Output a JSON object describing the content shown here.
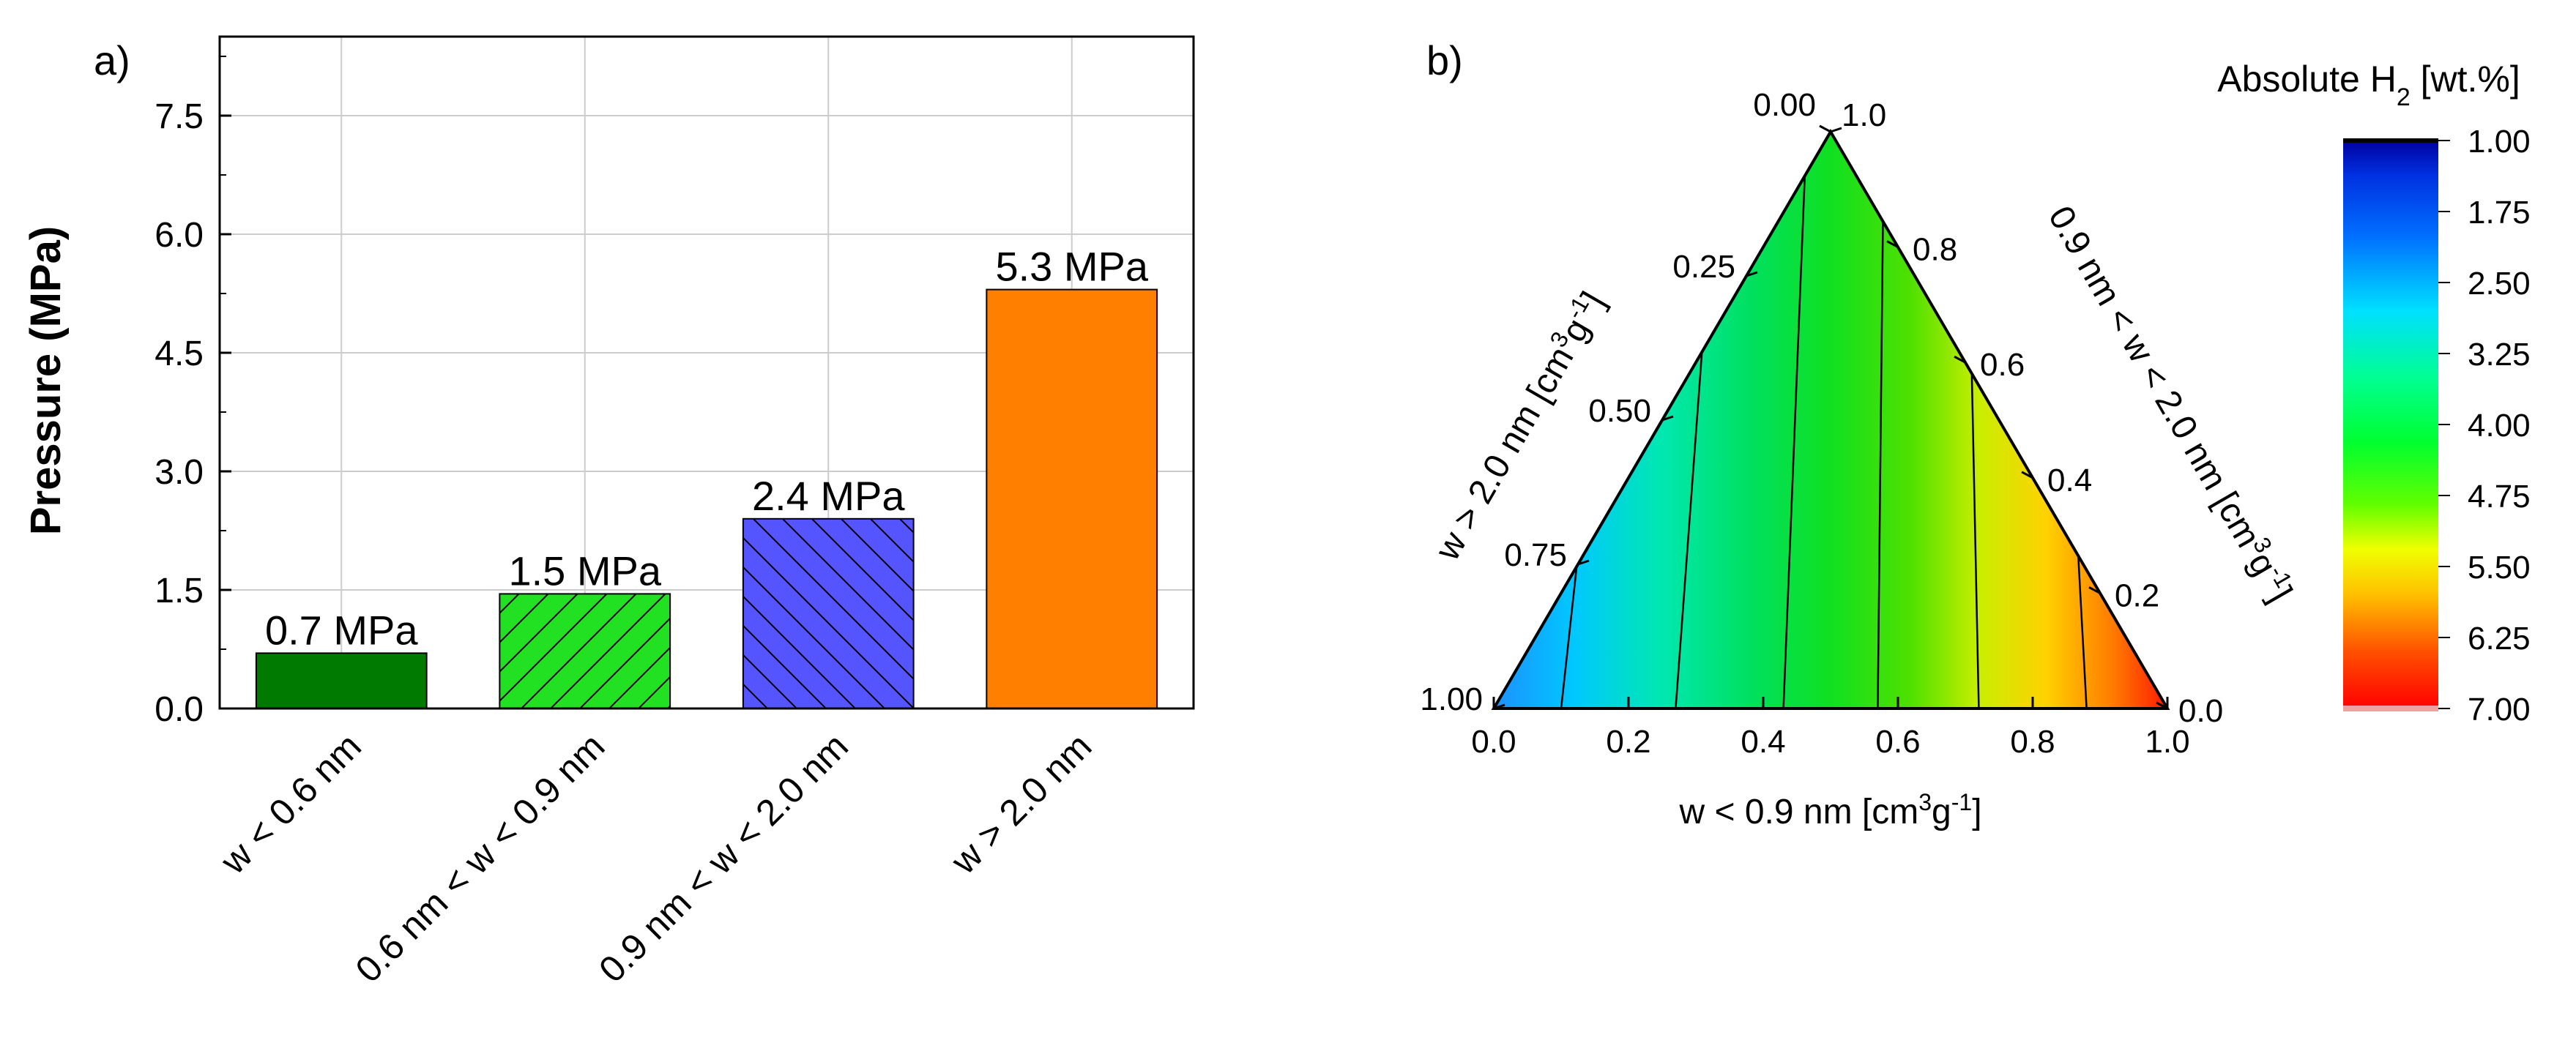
{
  "chart_data": [
    {
      "panel_label": "a)",
      "type": "bar",
      "categories": [
        "w < 0.6 nm",
        "0.6 nm < w < 0.9 nm",
        "0.9 nm < w < 2.0 nm",
        "w > 2.0 nm"
      ],
      "values": [
        0.7,
        1.45,
        2.4,
        5.3
      ],
      "data_labels": [
        "0.7 MPa",
        "1.5 MPa",
        "2.4 MPa",
        "5.3 MPa"
      ],
      "colors": [
        "#007a00",
        "#22e022",
        "#5555ff",
        "#ff7f00"
      ],
      "patterns": [
        "none",
        "hatch-right",
        "hatch-left",
        "none"
      ],
      "ylabel": "Pressure (MPa)",
      "ylim": [
        0,
        8.5
      ],
      "yticks": [
        "0.0",
        "1.5",
        "3.0",
        "4.5",
        "6.0",
        "7.5"
      ],
      "ytick_values": [
        0,
        1.5,
        3.0,
        4.5,
        6.0,
        7.5
      ],
      "grid": true
    },
    {
      "panel_label": "b)",
      "type": "ternary-contour",
      "bottom_axis": {
        "label_main": "w < 0.9 nm [cm",
        "label_sup": "3",
        "label_end": "g",
        "label_sup2": "-1",
        "label_close": "]",
        "ticks": [
          "0.0",
          "0.2",
          "0.4",
          "0.6",
          "0.8",
          "1.0"
        ],
        "tick_values": [
          0,
          0.2,
          0.4,
          0.6,
          0.8,
          1.0
        ]
      },
      "left_axis": {
        "label_main": "w > 2.0 nm [cm",
        "label_sup": "3",
        "label_end": "g",
        "label_sup2": "-1",
        "label_close": "]",
        "ticks": [
          "0.00",
          "0.25",
          "0.50",
          "0.75",
          "1.00"
        ],
        "tick_values": [
          0,
          0.25,
          0.5,
          0.75,
          1.0
        ]
      },
      "right_axis": {
        "label_main": "0.9 nm < w < 2.0 nm [cm",
        "label_sup": "3",
        "label_end": "g",
        "label_sup2": "-1",
        "label_close": "]",
        "ticks": [
          "0.0",
          "0.2",
          "0.4",
          "0.6",
          "0.8",
          "1.0"
        ],
        "tick_values": [
          0,
          0.2,
          0.4,
          0.6,
          0.8,
          1.0
        ]
      },
      "contour_levels_bottom": [
        0.1,
        0.27,
        0.43,
        0.57,
        0.72,
        0.88
      ],
      "colorbar": {
        "title_main": "Absolute H",
        "title_sub": "2",
        "title_end": " [wt.%]",
        "ticks": [
          "1.00",
          "1.75",
          "2.50",
          "3.25",
          "4.00",
          "4.75",
          "5.50",
          "6.25",
          "7.00"
        ],
        "range": [
          1.0,
          7.0
        ],
        "colors": [
          "#0000a0",
          "#0060ff",
          "#00e0ff",
          "#00ff60",
          "#20ff00",
          "#c8ff00",
          "#ffff00",
          "#ff9000",
          "#ff0000"
        ]
      }
    }
  ]
}
